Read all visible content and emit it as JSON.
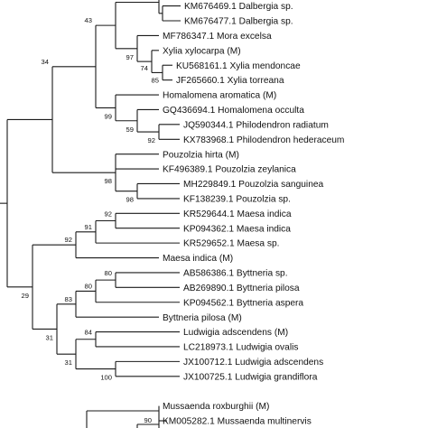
{
  "tree": {
    "leaves": [
      "",
      "KM676469.1 Dalbergia sp.",
      "KM676477.1 Dalbergia sp.",
      "MF786347.1 Mora excelsa",
      "Xylia xylocarpa (M)",
      "KU568161.1 Xylia mendoncae",
      "JF265660.1 Xylia torreana",
      "Homalomena aromatica (M)",
      "GQ436694.1 Homalomena occulta",
      "JQ590344.1 Philodendron radiatum",
      "KX783968.1 Philodendron hederaceum",
      "Pouzolzia hirta (M)",
      "KF496389.1 Pouzolzia zeylanica",
      "MH229849.1 Pouzolzia sanguinea",
      "KF138239.1 Pouzolzia sp.",
      "KR529644.1 Maesa indica",
      "KP094362.1 Maesa indica",
      "KR529652.1 Maesa sp.",
      "Maesa indica (M)",
      "AB586386.1 Byttneria sp.",
      "AB269890.1 Byttneria pilosa",
      "KP094562.1 Byttneria aspera",
      "Byttneria pilosa (M)",
      "Ludwigia adscendens (M)",
      "LC218973.1 Ludwigia ovalis",
      "JX100712.1 Ludwigia adscendens",
      "JX100725.1 Ludwigia grandiflora",
      "",
      "Mussaenda roxburghii (M)",
      "KM005282.1 Mussaenda multinervis"
    ],
    "bootstrap": [
      {
        "id": "n99top",
        "value": "99"
      },
      {
        "id": "n58",
        "value": "58"
      },
      {
        "id": "n97",
        "value": "97"
      },
      {
        "id": "n74",
        "value": "74"
      },
      {
        "id": "n85",
        "value": "85"
      },
      {
        "id": "n43",
        "value": "43"
      },
      {
        "id": "n34",
        "value": "34"
      },
      {
        "id": "n99homa",
        "value": "99"
      },
      {
        "id": "n59",
        "value": "59"
      },
      {
        "id": "n92phil",
        "value": "92"
      },
      {
        "id": "n98a",
        "value": "98"
      },
      {
        "id": "n98b",
        "value": "98"
      },
      {
        "id": "n92maesa",
        "value": "92"
      },
      {
        "id": "n91",
        "value": "91"
      },
      {
        "id": "n92big",
        "value": "92"
      },
      {
        "id": "n80",
        "value": "80"
      },
      {
        "id": "n80b",
        "value": "80"
      },
      {
        "id": "n83",
        "value": "83"
      },
      {
        "id": "n29",
        "value": "29"
      },
      {
        "id": "n84",
        "value": "84"
      },
      {
        "id": "n31lud",
        "value": "31"
      },
      {
        "id": "n100",
        "value": "100"
      },
      {
        "id": "n31",
        "value": "31"
      },
      {
        "id": "n90",
        "value": "90"
      }
    ]
  }
}
